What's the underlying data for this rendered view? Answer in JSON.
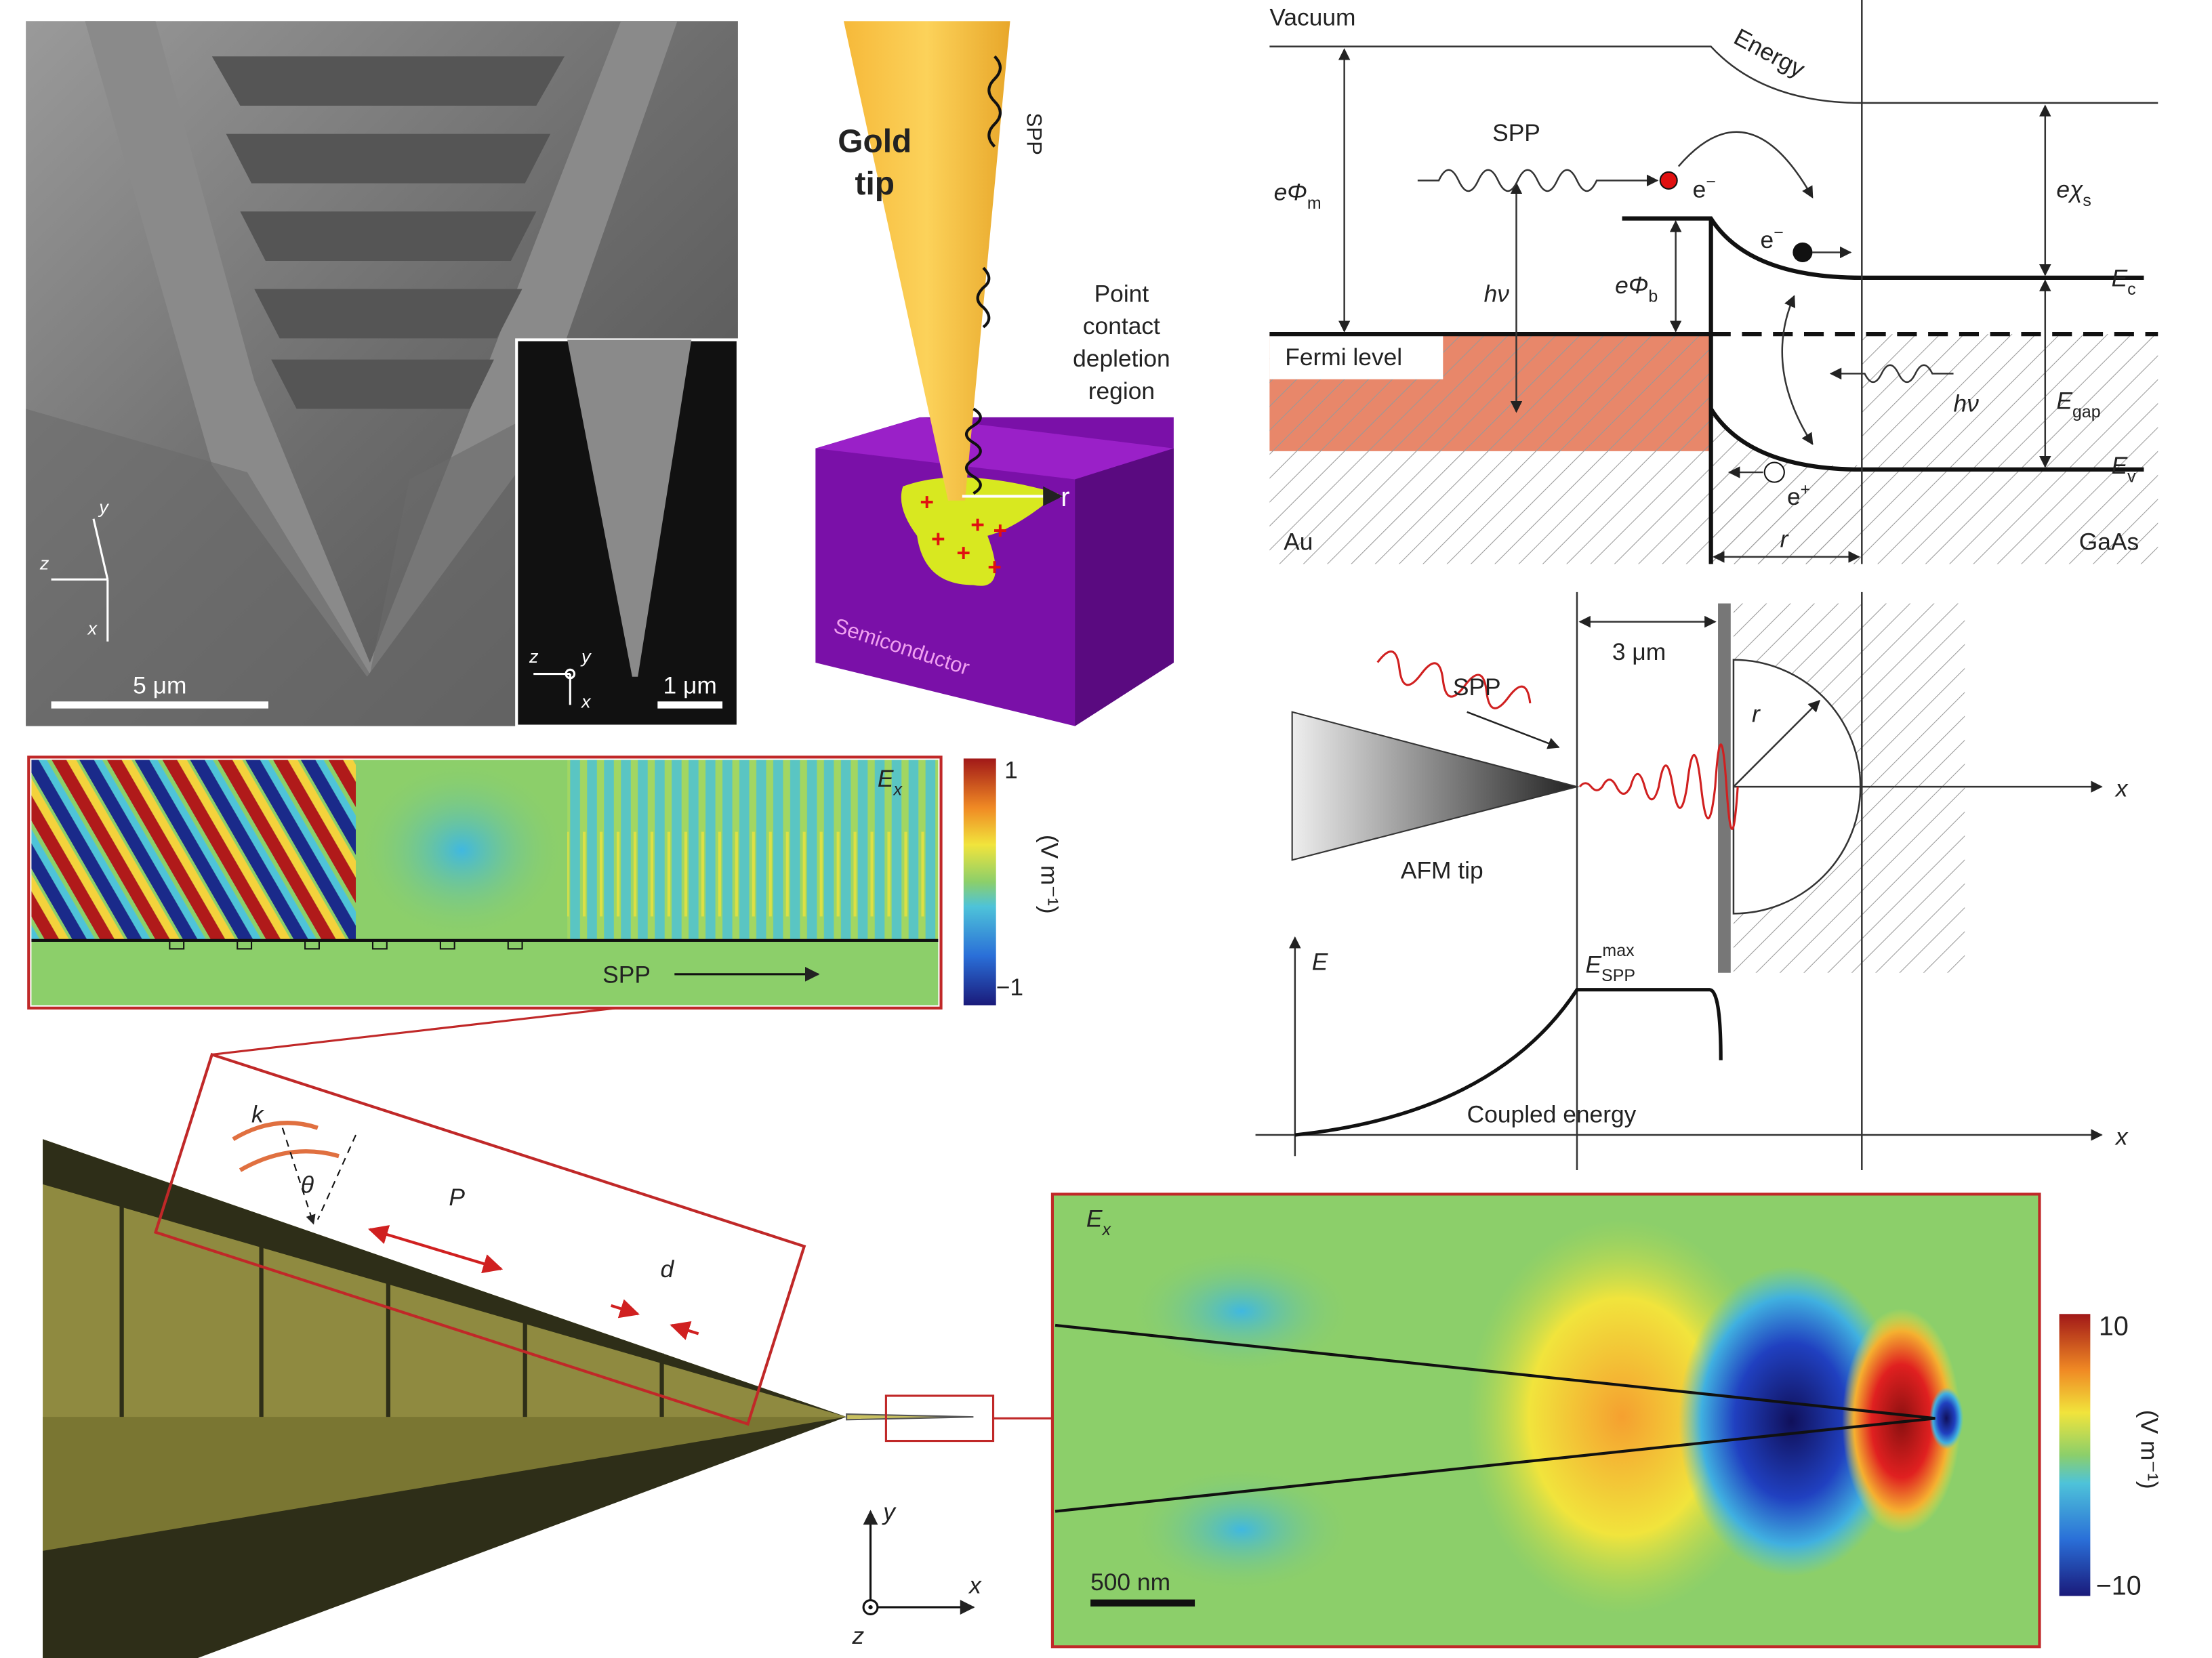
{
  "sem": {
    "scale_main": "5 μm",
    "scale_inset": "1 μm",
    "axes_main": [
      "y",
      "z",
      "x"
    ],
    "axes_inset": [
      "z",
      "y",
      "x"
    ]
  },
  "tip_schematic": {
    "title_lines": [
      "Gold",
      "tip"
    ],
    "wave": "SPP",
    "region_lines": [
      "Point",
      "contact",
      "depletion",
      "region"
    ],
    "radius": "r",
    "substrate": "Semiconductor"
  },
  "band_diagram": {
    "vacuum": "Vacuum",
    "energy": "Energy",
    "wave": "SPP",
    "electron_left": {
      "text": "e",
      "sup": "−"
    },
    "work_function": {
      "text": "eΦ",
      "sub": "m"
    },
    "affinity": {
      "text": "eχ",
      "sub": "s"
    },
    "barrier": {
      "text": "eΦ",
      "sub": "b"
    },
    "photon_left": "hν",
    "conduction": {
      "text": "E",
      "sub": "c"
    },
    "fermi": "Fermi level",
    "gap": {
      "text": "E",
      "sub": "gap"
    },
    "photon_right": "hν",
    "electron_right": {
      "text": "e",
      "sup": "−"
    },
    "valence": {
      "text": "E",
      "sub": "v"
    },
    "hole": {
      "text": "e",
      "sup": "+"
    },
    "metal": "Au",
    "radius": "r",
    "semiconductor": "GaAs"
  },
  "coupling_diagram": {
    "distance": "3 μm",
    "wave": "SPP",
    "radius": "r",
    "x_axis": "x",
    "tip": "AFM tip",
    "energy_axis": "E",
    "peak": {
      "text": "E",
      "sub": "SPP",
      "sup": "max"
    },
    "curve": "Coupled energy",
    "x_axis_lower": "x"
  },
  "field_map_top": {
    "field": {
      "text": "E",
      "sub": "x"
    },
    "cbar_max": "1",
    "cbar_min": "−1",
    "unit": "(V m⁻¹)",
    "wave": "SPP"
  },
  "tip_model": {
    "wavevector": "k",
    "angle": "θ",
    "period": "P",
    "width": "d",
    "axes": [
      "y",
      "x",
      "z"
    ]
  },
  "field_map_bottom": {
    "field": {
      "text": "E",
      "sub": "x"
    },
    "scale": "500 nm",
    "cbar_max": "10",
    "cbar_min": "−10",
    "unit": "(V m⁻¹)"
  }
}
